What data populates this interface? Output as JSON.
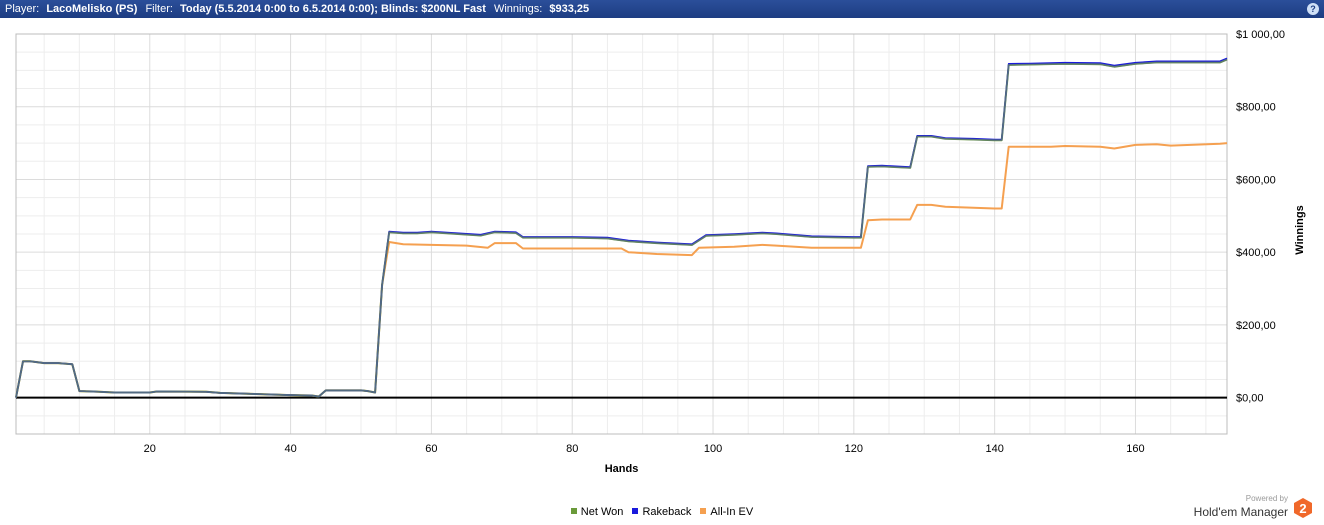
{
  "header": {
    "player_label": "Player:",
    "player_value": "LacoMelisko (PS)",
    "filter_label": "Filter:",
    "filter_value": "Today (5.5.2014 0:00 to 6.5.2014 0:00); Blinds: $200NL Fast",
    "winnings_label": "Winnings:",
    "winnings_value": "$933,25",
    "help_icon": "help-icon",
    "help_glyph": "?"
  },
  "colors": {
    "titlebar": "#1d3d82",
    "net_won": "#6a9a3a",
    "rakeback": "#1a1adc",
    "all_in_ev": "#f5a050",
    "zero_line": "#000000",
    "grid": "#dcdcdc"
  },
  "chart_data": {
    "type": "line",
    "xlabel": "Hands",
    "ylabel": "Winnings",
    "xlim": [
      1,
      173
    ],
    "ylim": [
      -100,
      1000
    ],
    "x_ticks": [
      20,
      40,
      60,
      80,
      100,
      120,
      140,
      160
    ],
    "y_ticks": [
      0,
      200,
      400,
      600,
      800,
      1000
    ],
    "y_tick_labels": [
      "$0,00",
      "$200,00",
      "$400,00",
      "$600,00",
      "$800,00",
      "$1 000,00"
    ],
    "grid": true,
    "zero_line": true,
    "legend_position": "bottom",
    "series": [
      {
        "name": "Net Won",
        "color": "#6a9a3a",
        "points": [
          [
            1,
            0
          ],
          [
            2,
            100
          ],
          [
            3,
            100
          ],
          [
            5,
            95
          ],
          [
            7,
            95
          ],
          [
            9,
            92
          ],
          [
            10,
            18
          ],
          [
            12,
            17
          ],
          [
            15,
            14
          ],
          [
            20,
            14
          ],
          [
            21,
            17
          ],
          [
            28,
            16
          ],
          [
            30,
            13
          ],
          [
            35,
            10
          ],
          [
            40,
            7
          ],
          [
            43,
            6
          ],
          [
            44,
            3
          ],
          [
            45,
            20
          ],
          [
            50,
            20
          ],
          [
            51,
            18
          ],
          [
            52,
            14
          ],
          [
            53,
            310
          ],
          [
            54,
            455
          ],
          [
            56,
            452
          ],
          [
            58,
            452
          ],
          [
            60,
            455
          ],
          [
            67,
            446
          ],
          [
            69,
            455
          ],
          [
            72,
            453
          ],
          [
            73,
            440
          ],
          [
            80,
            440
          ],
          [
            85,
            438
          ],
          [
            88,
            430
          ],
          [
            92,
            425
          ],
          [
            97,
            420
          ],
          [
            99,
            445
          ],
          [
            103,
            448
          ],
          [
            107,
            452
          ],
          [
            109,
            450
          ],
          [
            114,
            442
          ],
          [
            120,
            440
          ],
          [
            121,
            440
          ],
          [
            122,
            635
          ],
          [
            124,
            636
          ],
          [
            128,
            632
          ],
          [
            129,
            718
          ],
          [
            131,
            718
          ],
          [
            133,
            712
          ],
          [
            137,
            710
          ],
          [
            140,
            708
          ],
          [
            141,
            708
          ],
          [
            142,
            915
          ],
          [
            145,
            916
          ],
          [
            150,
            918
          ],
          [
            155,
            917
          ],
          [
            157,
            910
          ],
          [
            160,
            918
          ],
          [
            163,
            922
          ],
          [
            172,
            922
          ],
          [
            173,
            930
          ]
        ]
      },
      {
        "name": "Rakeback",
        "color": "#1a1adc",
        "points": [
          [
            1,
            0
          ],
          [
            2,
            100
          ],
          [
            3,
            100
          ],
          [
            5,
            95
          ],
          [
            7,
            95
          ],
          [
            9,
            92
          ],
          [
            10,
            18
          ],
          [
            12,
            17
          ],
          [
            15,
            14
          ],
          [
            20,
            14
          ],
          [
            21,
            17
          ],
          [
            28,
            16
          ],
          [
            30,
            13
          ],
          [
            35,
            10
          ],
          [
            40,
            7
          ],
          [
            43,
            6
          ],
          [
            44,
            3
          ],
          [
            45,
            20
          ],
          [
            50,
            20
          ],
          [
            51,
            18
          ],
          [
            52,
            14
          ],
          [
            53,
            310
          ],
          [
            54,
            457
          ],
          [
            56,
            454
          ],
          [
            58,
            454
          ],
          [
            60,
            457
          ],
          [
            67,
            448
          ],
          [
            69,
            457
          ],
          [
            72,
            455
          ],
          [
            73,
            442
          ],
          [
            80,
            442
          ],
          [
            85,
            440
          ],
          [
            88,
            432
          ],
          [
            92,
            427
          ],
          [
            97,
            422
          ],
          [
            99,
            447
          ],
          [
            103,
            450
          ],
          [
            107,
            454
          ],
          [
            109,
            452
          ],
          [
            114,
            444
          ],
          [
            120,
            442
          ],
          [
            121,
            442
          ],
          [
            122,
            637
          ],
          [
            124,
            638
          ],
          [
            128,
            634
          ],
          [
            129,
            720
          ],
          [
            131,
            720
          ],
          [
            133,
            714
          ],
          [
            137,
            712
          ],
          [
            140,
            710
          ],
          [
            141,
            710
          ],
          [
            142,
            918
          ],
          [
            145,
            919
          ],
          [
            150,
            921
          ],
          [
            155,
            920
          ],
          [
            157,
            913
          ],
          [
            160,
            921
          ],
          [
            163,
            925
          ],
          [
            172,
            925
          ],
          [
            173,
            933
          ]
        ]
      },
      {
        "name": "All-In EV",
        "color": "#f5a050",
        "points": [
          [
            1,
            0
          ],
          [
            2,
            100
          ],
          [
            3,
            100
          ],
          [
            5,
            95
          ],
          [
            7,
            95
          ],
          [
            9,
            92
          ],
          [
            10,
            18
          ],
          [
            12,
            17
          ],
          [
            15,
            14
          ],
          [
            20,
            14
          ],
          [
            21,
            17
          ],
          [
            28,
            16
          ],
          [
            30,
            13
          ],
          [
            35,
            10
          ],
          [
            40,
            7
          ],
          [
            43,
            6
          ],
          [
            44,
            3
          ],
          [
            45,
            20
          ],
          [
            50,
            20
          ],
          [
            51,
            18
          ],
          [
            52,
            14
          ],
          [
            53,
            310
          ],
          [
            54,
            428
          ],
          [
            56,
            422
          ],
          [
            60,
            420
          ],
          [
            65,
            418
          ],
          [
            68,
            412
          ],
          [
            69,
            425
          ],
          [
            72,
            425
          ],
          [
            73,
            410
          ],
          [
            80,
            410
          ],
          [
            87,
            410
          ],
          [
            88,
            400
          ],
          [
            92,
            395
          ],
          [
            97,
            392
          ],
          [
            98,
            412
          ],
          [
            103,
            415
          ],
          [
            107,
            420
          ],
          [
            109,
            418
          ],
          [
            114,
            412
          ],
          [
            120,
            412
          ],
          [
            121,
            412
          ],
          [
            122,
            488
          ],
          [
            124,
            490
          ],
          [
            128,
            490
          ],
          [
            129,
            530
          ],
          [
            131,
            530
          ],
          [
            133,
            525
          ],
          [
            137,
            522
          ],
          [
            140,
            520
          ],
          [
            141,
            520
          ],
          [
            142,
            690
          ],
          [
            148,
            690
          ],
          [
            150,
            692
          ],
          [
            155,
            690
          ],
          [
            157,
            685
          ],
          [
            160,
            695
          ],
          [
            163,
            697
          ],
          [
            165,
            693
          ],
          [
            172,
            698
          ],
          [
            173,
            700
          ]
        ]
      }
    ]
  },
  "legend": {
    "items": [
      {
        "label": "Net Won",
        "color": "#6a9a3a"
      },
      {
        "label": "Rakeback",
        "color": "#1a1adc"
      },
      {
        "label": "All-In EV",
        "color": "#f5a050"
      }
    ]
  },
  "brand": {
    "powered_by": "Powered by",
    "name": "Hold'em Manager",
    "logo_number": "2",
    "logo_color": "#f0682a"
  }
}
